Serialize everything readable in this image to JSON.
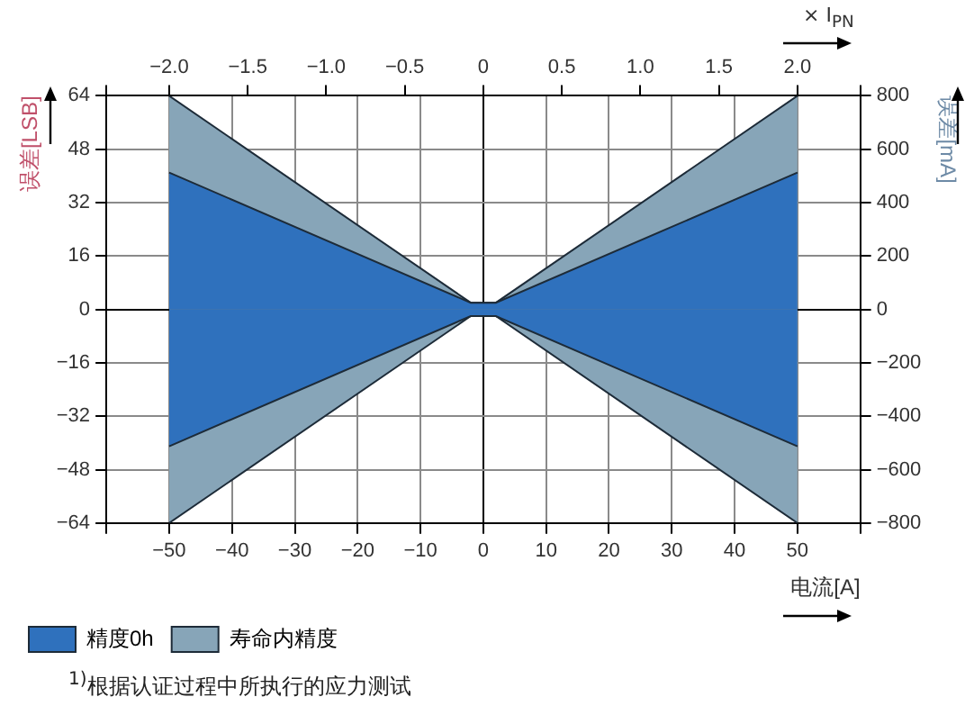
{
  "chart_data": {
    "type": "area",
    "xlabel": "电流[A]",
    "ylabel": "误差[LSB]",
    "y2label": "误差[mA]",
    "x2label": "× I$_{PN}$",
    "xlim": [
      -60,
      60
    ],
    "xticks": [
      {
        "value": -60,
        "label": null
      },
      -50,
      -40,
      -30,
      -20,
      -10,
      0,
      10,
      20,
      30,
      40,
      50,
      {
        "value": 60,
        "label": null
      }
    ],
    "x2lim": [
      -2.4,
      2.4
    ],
    "x2ticks": [
      {
        "value": -2.4,
        "label": null
      },
      {
        "value": -2,
        "label": "−2.0"
      },
      {
        "value": -1.5,
        "label": "−1.5"
      },
      {
        "value": -1,
        "label": "−1.0"
      },
      {
        "value": -0.5,
        "label": "−0.5"
      },
      0,
      0.5,
      {
        "value": 1,
        "label": "1.0"
      },
      1.5,
      {
        "value": 2,
        "label": "2.0"
      },
      {
        "value": 2.4,
        "label": null
      }
    ],
    "ylim": [
      -64,
      64
    ],
    "yticks": [
      -64,
      -48,
      -32,
      -16,
      0,
      16,
      32,
      48,
      64
    ],
    "y2lim": [
      -800,
      800
    ],
    "y2ticks": [
      -800,
      -600,
      -400,
      -200,
      0,
      200,
      400,
      600,
      800
    ],
    "series": [
      {
        "name": "寿命内精度",
        "color": "#87a5b8",
        "x": [
          -50,
          -2,
          2,
          50
        ],
        "values": [
          64,
          2,
          2,
          64
        ]
      },
      {
        "color": "#87a5b8",
        "x": [
          -50,
          -2,
          2,
          50
        ],
        "values": [
          -64,
          -2,
          -2,
          -64
        ]
      },
      {
        "name": "精度0h",
        "color": "#2f71bd",
        "x": [
          -50,
          -2,
          2,
          50
        ],
        "values": [
          41,
          2,
          2,
          41
        ]
      },
      {
        "color": "#2f71bd",
        "x": [
          -50,
          -2,
          2,
          50
        ],
        "values": [
          -41,
          -2,
          -2,
          -41
        ]
      }
    ],
    "grid": true,
    "legend": "bottom left",
    "annotations": [
      "$^{1)}$根据认证过程中所执行的应力测试"
    ]
  }
}
